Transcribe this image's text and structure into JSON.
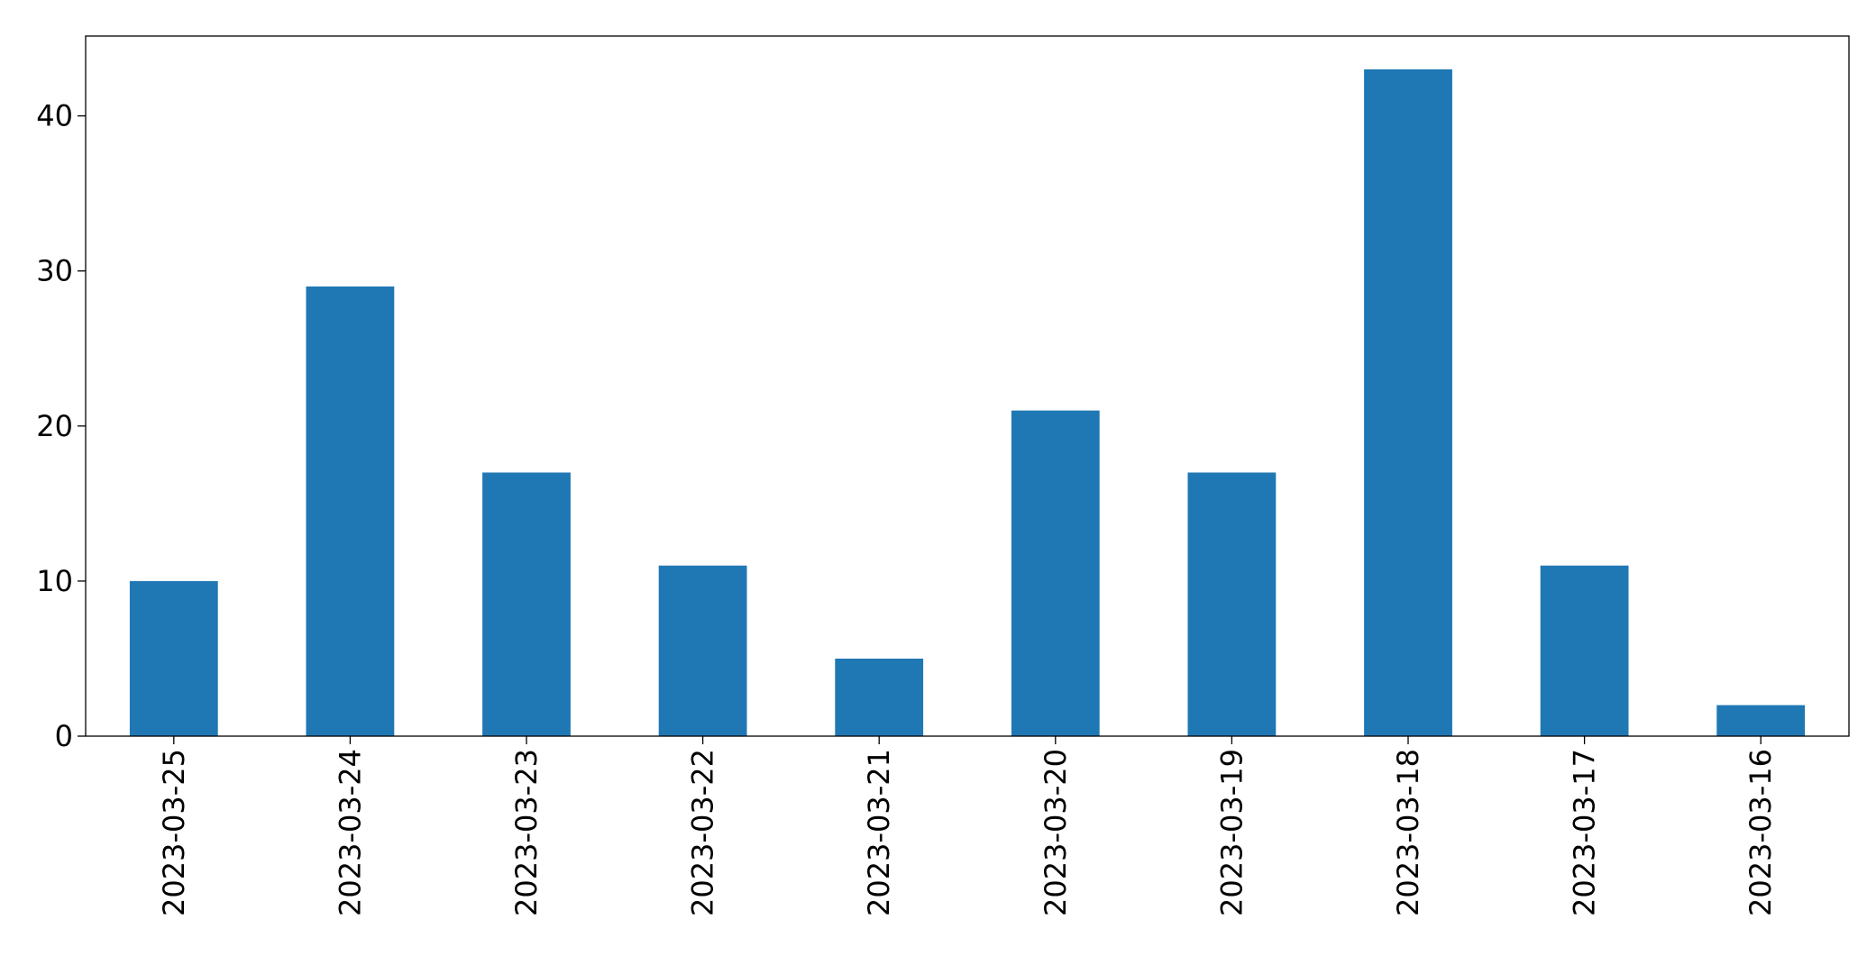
{
  "chart_data": {
    "type": "bar",
    "categories": [
      "2023-03-25",
      "2023-03-24",
      "2023-03-23",
      "2023-03-22",
      "2023-03-21",
      "2023-03-20",
      "2023-03-19",
      "2023-03-18",
      "2023-03-17",
      "2023-03-16"
    ],
    "values": [
      10,
      29,
      17,
      11,
      5,
      21,
      17,
      43,
      11,
      2
    ],
    "color": "#1f77b4",
    "ylim": [
      0,
      45.15
    ],
    "yticks": [
      0,
      10,
      20,
      30,
      40
    ],
    "grid": false
  }
}
